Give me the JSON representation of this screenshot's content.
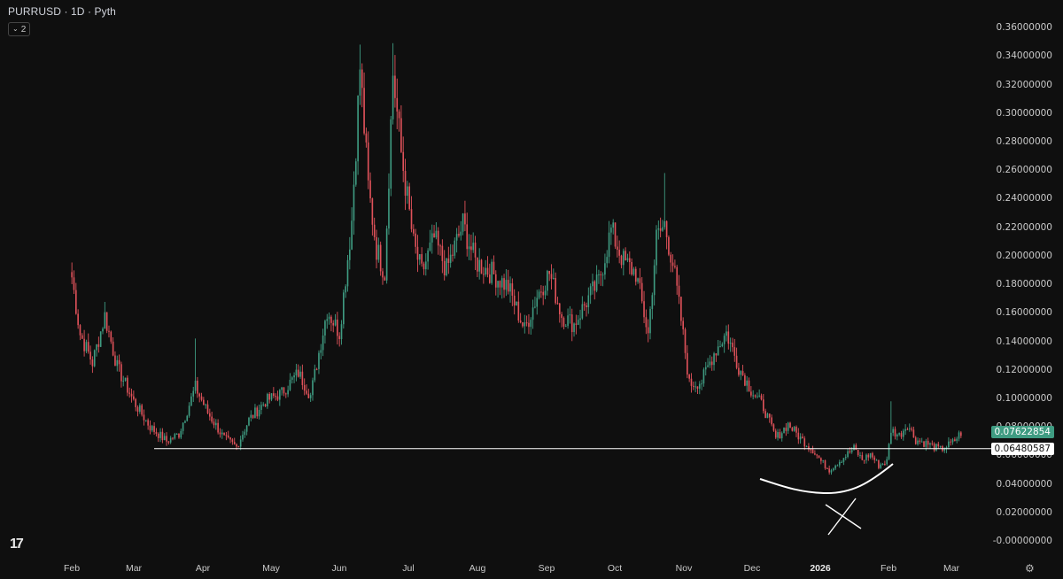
{
  "header": {
    "title": "PURRUSD · 1D · Pyth",
    "collapse_count": "2"
  },
  "chart_data": {
    "type": "candlestick",
    "symbol": "PURRUSD",
    "interval": "1D",
    "source": "Pyth",
    "ylim": [
      -0.003,
      0.365
    ],
    "y_ticks": [
      "0.36000000",
      "0.34000000",
      "0.32000000",
      "0.30000000",
      "0.28000000",
      "0.26000000",
      "0.24000000",
      "0.22000000",
      "0.20000000",
      "0.18000000",
      "0.16000000",
      "0.14000000",
      "0.12000000",
      "0.10000000",
      "0.08000000",
      "0.06000000",
      "0.04000000",
      "0.02000000",
      "-0.00000000"
    ],
    "x_ticks": [
      "Feb",
      "Mar",
      "Apr",
      "May",
      "Jun",
      "Jul",
      "Aug",
      "Sep",
      "Oct",
      "Nov",
      "Dec",
      "2026",
      "Feb",
      "Mar"
    ],
    "current_price": "0.07622854",
    "horizontal_level": "0.06480587",
    "close_path": [
      [
        0,
        0.185
      ],
      [
        4,
        0.145
      ],
      [
        10,
        0.125
      ],
      [
        16,
        0.158
      ],
      [
        22,
        0.122
      ],
      [
        30,
        0.098
      ],
      [
        38,
        0.08
      ],
      [
        46,
        0.07
      ],
      [
        52,
        0.075
      ],
      [
        60,
        0.108
      ],
      [
        66,
        0.09
      ],
      [
        74,
        0.072
      ],
      [
        80,
        0.066
      ],
      [
        86,
        0.085
      ],
      [
        94,
        0.098
      ],
      [
        102,
        0.104
      ],
      [
        110,
        0.118
      ],
      [
        116,
        0.102
      ],
      [
        124,
        0.162
      ],
      [
        130,
        0.146
      ],
      [
        136,
        0.225
      ],
      [
        140,
        0.332
      ],
      [
        144,
        0.248
      ],
      [
        148,
        0.205
      ],
      [
        152,
        0.188
      ],
      [
        156,
        0.328
      ],
      [
        160,
        0.272
      ],
      [
        166,
        0.208
      ],
      [
        170,
        0.188
      ],
      [
        176,
        0.212
      ],
      [
        182,
        0.19
      ],
      [
        190,
        0.222
      ],
      [
        196,
        0.196
      ],
      [
        204,
        0.188
      ],
      [
        212,
        0.178
      ],
      [
        220,
        0.148
      ],
      [
        226,
        0.172
      ],
      [
        232,
        0.188
      ],
      [
        238,
        0.158
      ],
      [
        244,
        0.152
      ],
      [
        250,
        0.168
      ],
      [
        256,
        0.182
      ],
      [
        262,
        0.218
      ],
      [
        268,
        0.196
      ],
      [
        274,
        0.188
      ],
      [
        280,
        0.145
      ],
      [
        284,
        0.212
      ],
      [
        288,
        0.222
      ],
      [
        292,
        0.195
      ],
      [
        296,
        0.155
      ],
      [
        300,
        0.11
      ],
      [
        306,
        0.112
      ],
      [
        312,
        0.132
      ],
      [
        318,
        0.146
      ],
      [
        324,
        0.122
      ],
      [
        330,
        0.106
      ],
      [
        336,
        0.094
      ],
      [
        342,
        0.072
      ],
      [
        348,
        0.082
      ],
      [
        354,
        0.072
      ],
      [
        360,
        0.064
      ],
      [
        364,
        0.056
      ],
      [
        368,
        0.05
      ],
      [
        372,
        0.055
      ],
      [
        376,
        0.06
      ],
      [
        380,
        0.065
      ],
      [
        384,
        0.057
      ],
      [
        388,
        0.061
      ],
      [
        392,
        0.053
      ],
      [
        396,
        0.056
      ],
      [
        398,
        0.078
      ],
      [
        402,
        0.074
      ],
      [
        406,
        0.082
      ],
      [
        410,
        0.071
      ],
      [
        416,
        0.068
      ],
      [
        422,
        0.064
      ],
      [
        428,
        0.069
      ],
      [
        432,
        0.076
      ]
    ],
    "wick_spikes": [
      [
        140,
        0.348
      ],
      [
        156,
        0.349
      ],
      [
        288,
        0.258
      ],
      [
        398,
        0.098
      ],
      [
        0,
        0.192
      ],
      [
        60,
        0.142
      ],
      [
        262,
        0.222
      ]
    ],
    "annotations": [
      {
        "type": "curve",
        "description": "hand-drawn rounded bottom under Dec–Jan base"
      },
      {
        "type": "cross",
        "description": "hand-drawn X mark below the curve"
      }
    ]
  },
  "icons": {
    "logo": "tradingview-logo-icon",
    "settings": "gear-icon"
  },
  "colors": {
    "background": "#0f0f0f",
    "up": "#3f9c82",
    "down": "#e0525a",
    "level_line": "#ffffff",
    "annotation": "#ffffff"
  }
}
